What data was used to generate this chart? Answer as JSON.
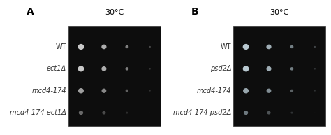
{
  "panel_A": {
    "label": "A",
    "title": "30°C",
    "strains": [
      "WT",
      "ect1Δ",
      "mcd4-174",
      "mcd4-174 ect1Δ"
    ],
    "bg_color": "#111111",
    "plate_color": "#0a0a0a",
    "spots": [
      {
        "row": 0,
        "sizes": [
          22,
          18,
          12,
          6
        ],
        "colors": [
          "#c8c8c8",
          "#c0c0c0",
          "#b0b0b0",
          "#a0a0a0"
        ],
        "opacities": [
          1.0,
          0.9,
          0.7,
          0.4
        ]
      },
      {
        "row": 1,
        "sizes": [
          22,
          18,
          12,
          6
        ],
        "colors": [
          "#c8c8c8",
          "#c0c0c0",
          "#b0b0b0",
          "#a0a0a0"
        ],
        "opacities": [
          1.0,
          0.9,
          0.7,
          0.4
        ]
      },
      {
        "row": 2,
        "sizes": [
          20,
          17,
          11,
          5
        ],
        "colors": [
          "#b0b0b0",
          "#a8a8a8",
          "#989898",
          "#888888"
        ],
        "opacities": [
          0.9,
          0.8,
          0.6,
          0.3
        ]
      },
      {
        "row": 3,
        "sizes": [
          16,
          13,
          8,
          3
        ],
        "colors": [
          "#909090",
          "#888888",
          "#787878",
          "#686868"
        ],
        "opacities": [
          0.7,
          0.5,
          0.3,
          0.1
        ]
      }
    ]
  },
  "panel_B": {
    "label": "B",
    "title": "30°C",
    "strains": [
      "WT",
      "psd2Δ",
      "mcd4-174",
      "mcd4-174 psd2Δ"
    ],
    "bg_color": "#111111",
    "plate_color": "#0a0a0a",
    "spots": [
      {
        "row": 0,
        "sizes": [
          22,
          18,
          12,
          6
        ],
        "colors": [
          "#b8c8d0",
          "#b0c0c8",
          "#a0b0b8",
          "#909aa0"
        ],
        "opacities": [
          1.0,
          0.9,
          0.7,
          0.4
        ]
      },
      {
        "row": 1,
        "sizes": [
          22,
          18,
          12,
          6
        ],
        "colors": [
          "#b8c8d0",
          "#b0c0c8",
          "#a0b0b8",
          "#909aa0"
        ],
        "opacities": [
          1.0,
          0.9,
          0.7,
          0.4
        ]
      },
      {
        "row": 2,
        "sizes": [
          20,
          17,
          11,
          5
        ],
        "colors": [
          "#a8b8c0",
          "#a0b0b8",
          "#909aa0",
          "#808a90"
        ],
        "opacities": [
          0.9,
          0.8,
          0.6,
          0.3
        ]
      },
      {
        "row": 3,
        "sizes": [
          16,
          13,
          8,
          3
        ],
        "colors": [
          "#98a8b0",
          "#909aa0",
          "#808a90",
          "#707880"
        ],
        "opacities": [
          0.7,
          0.5,
          0.3,
          0.1
        ]
      }
    ]
  },
  "figure_bg": "#ffffff",
  "label_color": "#000000",
  "strain_color": "#333333",
  "label_fontsize": 10,
  "title_fontsize": 8,
  "strain_fontsize": 7
}
